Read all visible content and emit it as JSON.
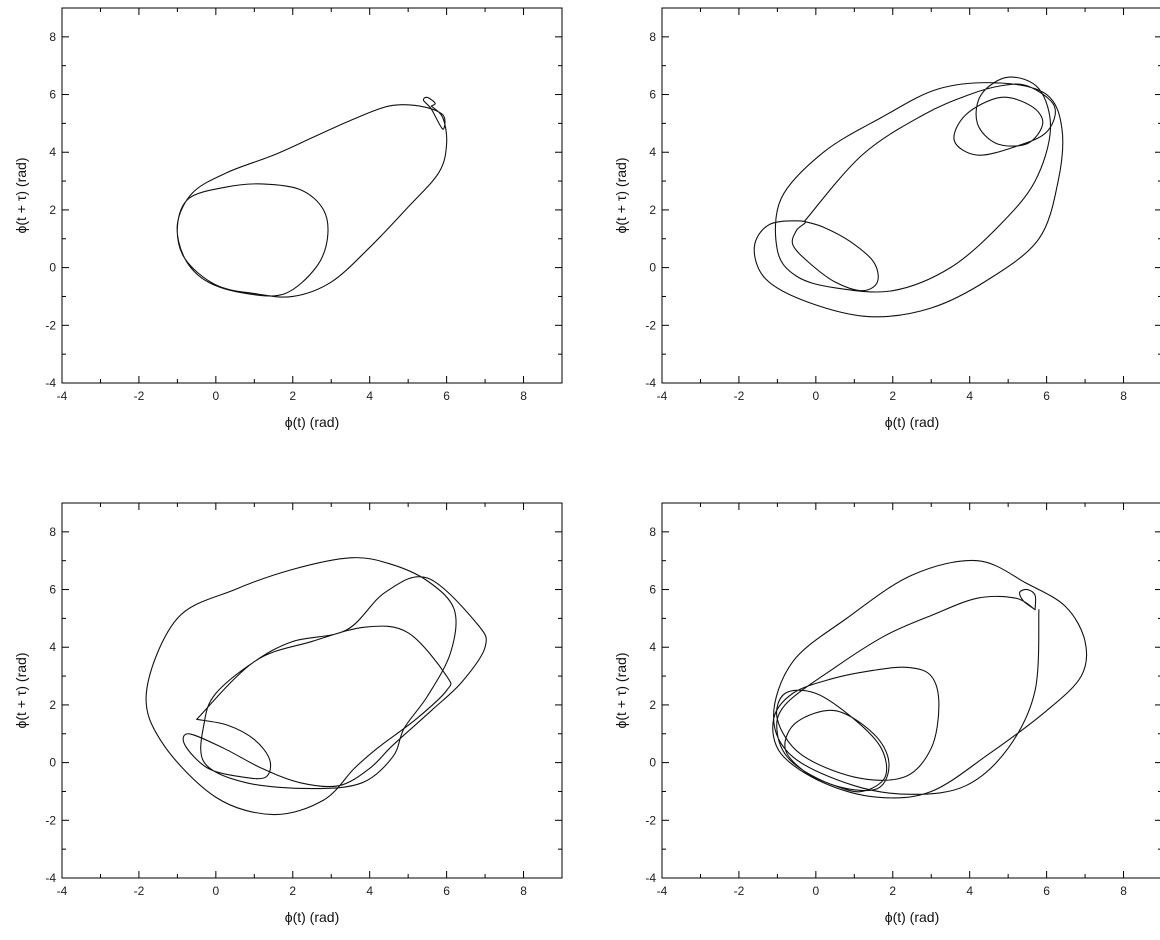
{
  "chart_data": [
    {
      "type": "line",
      "xlabel": "ϕ(t) (rad)",
      "ylabel": "ϕ(t + τ) (rad)",
      "xlim": [
        -4,
        9
      ],
      "ylim": [
        -4,
        9
      ],
      "xticks": [
        "-4",
        "-2",
        "0",
        "2",
        "4",
        "6",
        "8"
      ],
      "yticks": [
        "-4",
        "-2",
        "0",
        "2",
        "4",
        "6",
        "8"
      ],
      "grid": false,
      "series": [
        {
          "color": "#111111",
          "x": [
            5.6,
            5.9,
            6.0,
            5.8,
            5.0,
            4.0,
            3.0,
            2.0,
            1.0,
            0.0,
            -0.8,
            -1.0,
            -0.7,
            0.3,
            1.2,
            2.2,
            2.8,
            2.9,
            2.6,
            1.8,
            0.8,
            -0.2,
            -0.8,
            -1.0,
            -0.6,
            0.3,
            1.5,
            2.5,
            3.5,
            4.5,
            5.3,
            5.9,
            5.9,
            5.6,
            5.4,
            5.5,
            5.7,
            5.6
          ],
          "y": [
            5.6,
            5.2,
            4.3,
            3.3,
            2.1,
            0.7,
            -0.5,
            -1.0,
            -0.9,
            -0.6,
            0.3,
            1.4,
            2.4,
            2.8,
            2.9,
            2.7,
            2.0,
            1.0,
            0.0,
            -0.9,
            -0.9,
            -0.5,
            0.3,
            1.5,
            2.6,
            3.3,
            3.9,
            4.5,
            5.1,
            5.6,
            5.6,
            5.3,
            4.8,
            5.5,
            5.8,
            5.9,
            5.7,
            5.6
          ]
        }
      ]
    },
    {
      "type": "line",
      "xlabel": "ϕ(t) (rad)",
      "ylabel": "ϕ(t + τ) (rad)",
      "xlim": [
        -4,
        9
      ],
      "ylim": [
        -4,
        9
      ],
      "xticks": [
        "-4",
        "-2",
        "0",
        "2",
        "4",
        "6",
        "8"
      ],
      "yticks": [
        "-4",
        "-2",
        "0",
        "2",
        "4",
        "6",
        "8"
      ],
      "grid": false,
      "series": [
        {
          "color": "#111111",
          "x": [
            -0.3,
            0.2,
            0.9,
            1.5,
            1.6,
            1.2,
            0.5,
            -0.2,
            -0.6,
            -0.5,
            -0.3,
            -1.2,
            -1.6,
            -1.3,
            -0.2,
            1.4,
            3.0,
            4.5,
            5.8,
            6.3,
            6.4,
            6.0,
            4.8,
            3.2,
            1.7,
            0.2,
            -0.9,
            -1.0,
            -0.5,
            0.5,
            2.0,
            3.5,
            4.8,
            5.7,
            6.1,
            5.8,
            5.0,
            4.3,
            4.2,
            4.7,
            5.5,
            5.9,
            5.6,
            4.8,
            3.9,
            3.6,
            4.2,
            5.2,
            6.0,
            6.2,
            5.5,
            4.8,
            4.0,
            2.8,
            1.2,
            -0.3
          ],
          "y": [
            1.6,
            1.4,
            0.9,
            0.2,
            -0.5,
            -0.8,
            -0.5,
            0.2,
            0.8,
            1.3,
            1.6,
            1.5,
            0.7,
            -0.4,
            -1.2,
            -1.7,
            -1.4,
            -0.4,
            1.0,
            3.0,
            4.8,
            6.0,
            6.4,
            6.2,
            5.2,
            4.0,
            2.4,
            0.6,
            -0.3,
            -0.7,
            -0.8,
            0.0,
            1.5,
            3.0,
            4.8,
            6.2,
            6.6,
            6.0,
            5.0,
            4.3,
            4.3,
            5.0,
            5.6,
            5.9,
            5.3,
            4.4,
            3.9,
            4.2,
            4.7,
            5.6,
            6.3,
            6.3,
            6.0,
            5.3,
            3.9,
            1.6
          ]
        }
      ]
    },
    {
      "type": "line",
      "xlabel": "ϕ(t) (rad)",
      "ylabel": "ϕ(t + τ) (rad)",
      "xlim": [
        -4,
        9
      ],
      "ylim": [
        -4,
        9
      ],
      "xticks": [
        "-4",
        "-2",
        "0",
        "2",
        "4",
        "6",
        "8"
      ],
      "yticks": [
        "-4",
        "-2",
        "0",
        "2",
        "4",
        "6",
        "8"
      ],
      "grid": false,
      "series": [
        {
          "color": "#111111",
          "x": [
            -0.5,
            0.3,
            1.0,
            1.4,
            1.3,
            0.7,
            -0.2,
            -0.8,
            -0.7,
            0.2,
            1.2,
            2.2,
            3.2,
            4.0,
            4.6,
            5.6,
            6.4,
            7.0,
            6.8,
            5.5,
            4.4,
            3.4,
            2.0,
            1.0,
            0.0,
            -0.3,
            -0.3,
            0.8,
            2.5,
            3.8,
            4.6,
            4.9,
            5.5,
            6.1,
            6.2,
            5.5,
            4.5,
            3.5,
            2.0,
            0.5,
            -1.0,
            -1.8,
            -1.4,
            0.0,
            1.5,
            2.8,
            3.6,
            4.2,
            5.2,
            6.0,
            6.0,
            5.0,
            3.9,
            2.5,
            1.0,
            -0.5
          ],
          "y": [
            1.5,
            1.3,
            0.8,
            0.1,
            -0.5,
            -0.5,
            -0.2,
            0.6,
            1.0,
            0.5,
            -0.2,
            -0.7,
            -0.8,
            -0.2,
            0.6,
            1.8,
            2.8,
            4.0,
            4.8,
            6.4,
            5.9,
            4.6,
            4.2,
            3.5,
            2.4,
            1.4,
            0.0,
            -0.7,
            -0.9,
            -0.7,
            0.2,
            1.2,
            2.3,
            3.8,
            5.3,
            6.3,
            6.9,
            7.1,
            6.7,
            6.0,
            5.0,
            2.5,
            0.7,
            -1.2,
            -1.8,
            -1.3,
            -0.2,
            0.5,
            1.5,
            2.5,
            3.0,
            4.5,
            4.7,
            4.2,
            3.5,
            1.5
          ]
        }
      ]
    },
    {
      "type": "line",
      "xlabel": "ϕ(t) (rad)",
      "ylabel": "ϕ(t + τ) (rad)",
      "xlim": [
        -4,
        9
      ],
      "ylim": [
        -4,
        9
      ],
      "xticks": [
        "-4",
        "-2",
        "0",
        "2",
        "4",
        "6",
        "8"
      ],
      "yticks": [
        "-4",
        "-2",
        "0",
        "2",
        "4",
        "6",
        "8"
      ],
      "grid": false,
      "series": [
        {
          "color": "#111111",
          "x": [
            5.7,
            5.7,
            5.5,
            5.3,
            5.4,
            5.7,
            5.2,
            4.2,
            3.0,
            1.8,
            0.5,
            -0.8,
            -1.0,
            -0.6,
            0.5,
            1.6,
            1.9,
            1.5,
            0.5,
            -0.5,
            -0.8,
            -0.3,
            0.5,
            1.2,
            1.8,
            1.7,
            1.0,
            0.0,
            -0.8,
            -1.0,
            -0.4,
            1.0,
            2.3,
            3.0,
            3.2,
            3.0,
            2.4,
            1.5,
            0.4,
            -0.6,
            -1.1,
            -0.9,
            0.2,
            1.6,
            3.0,
            4.5,
            6.0,
            6.9,
            7.0,
            6.5,
            5.5,
            4.2,
            2.5,
            0.8,
            -0.6,
            -1.1,
            -0.6,
            1.0,
            2.5,
            3.9,
            5.0,
            5.7,
            5.8
          ],
          "y": [
            5.3,
            5.8,
            6.0,
            5.9,
            5.6,
            5.3,
            5.7,
            5.7,
            5.1,
            4.4,
            3.3,
            2.0,
            1.0,
            0.0,
            -0.8,
            -0.9,
            0.0,
            1.0,
            1.8,
            1.4,
            0.5,
            -0.3,
            -0.8,
            -1.0,
            -0.5,
            0.5,
            1.5,
            2.4,
            2.4,
            1.5,
            0.3,
            -0.5,
            -0.5,
            0.5,
            2.0,
            3.0,
            3.3,
            3.2,
            2.9,
            2.4,
            1.5,
            0.3,
            -0.7,
            -1.2,
            -1.0,
            0.3,
            1.8,
            3.0,
            4.2,
            5.4,
            6.2,
            7.0,
            6.5,
            5.0,
            3.5,
            1.6,
            0.2,
            -0.8,
            -1.1,
            -0.8,
            0.5,
            2.5,
            5.3
          ]
        }
      ]
    }
  ]
}
